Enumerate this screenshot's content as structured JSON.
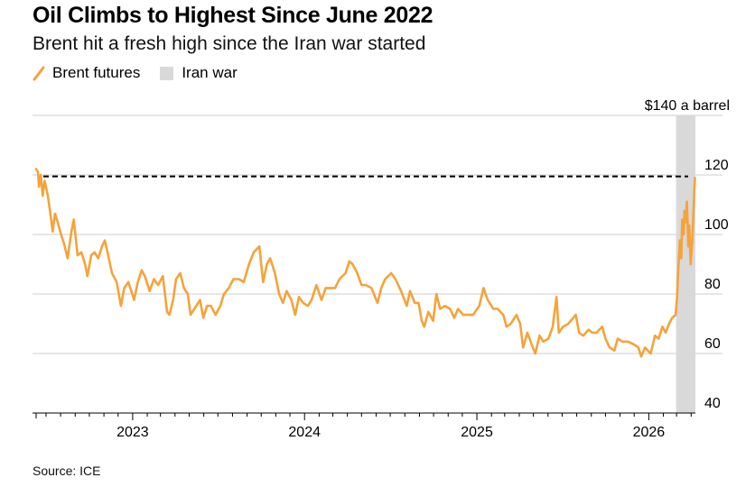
{
  "title": "Oil Climbs to Highest Since June 2022",
  "subtitle": "Brent hit a fresh high since the Iran war started",
  "source": "Source: ICE",
  "colors": {
    "line": "#f5a33a",
    "shade": "#d9d9d9",
    "reference": "#000000",
    "grid": "#cccccc"
  },
  "legend": [
    {
      "label": "Brent futures",
      "kind": "line"
    },
    {
      "label": "Iran war",
      "kind": "shade"
    }
  ],
  "chart_data": {
    "type": "line",
    "title": "Oil Climbs to Highest Since June 2022",
    "subtitle": "Brent hit a fresh high since the Iran war started",
    "ylabel": "",
    "y_unit_label": "$140 a barrel",
    "ylim": [
      40,
      140
    ],
    "yticks": [
      40,
      60,
      80,
      100,
      120,
      140
    ],
    "ytick_labels": [
      "40",
      "60",
      "80",
      "100",
      "120",
      "$140 a barrel"
    ],
    "xlim": [
      "2022-06-10",
      "2026-04-10"
    ],
    "xticks": [
      {
        "date": "2023-01-01",
        "label": "2023"
      },
      {
        "date": "2024-01-01",
        "label": "2024"
      },
      {
        "date": "2025-01-01",
        "label": "2025"
      },
      {
        "date": "2026-01-01",
        "label": "2026"
      }
    ],
    "grid": true,
    "legend_position": "top-left",
    "reference_line": {
      "value": 119.5,
      "style": "dashed"
    },
    "shaded_region": {
      "name": "Iran war",
      "start": "2026-02-28",
      "end": "2026-04-10"
    },
    "series": [
      {
        "name": "Brent futures",
        "points": [
          [
            "2022-06-10",
            122
          ],
          [
            "2022-06-14",
            121
          ],
          [
            "2022-06-16",
            116
          ],
          [
            "2022-06-20",
            120
          ],
          [
            "2022-06-24",
            113
          ],
          [
            "2022-06-28",
            118
          ],
          [
            "2022-07-05",
            113
          ],
          [
            "2022-07-12",
            105
          ],
          [
            "2022-07-15",
            101
          ],
          [
            "2022-07-20",
            107
          ],
          [
            "2022-07-26",
            104
          ],
          [
            "2022-08-02",
            100
          ],
          [
            "2022-08-08",
            97
          ],
          [
            "2022-08-16",
            92
          ],
          [
            "2022-08-24",
            101
          ],
          [
            "2022-08-29",
            105
          ],
          [
            "2022-09-06",
            93
          ],
          [
            "2022-09-14",
            94
          ],
          [
            "2022-09-22",
            90
          ],
          [
            "2022-09-27",
            86
          ],
          [
            "2022-10-05",
            93
          ],
          [
            "2022-10-12",
            94
          ],
          [
            "2022-10-20",
            92
          ],
          [
            "2022-10-28",
            96
          ],
          [
            "2022-11-03",
            98
          ],
          [
            "2022-11-10",
            93
          ],
          [
            "2022-11-18",
            87
          ],
          [
            "2022-11-28",
            84
          ],
          [
            "2022-12-07",
            76
          ],
          [
            "2022-12-14",
            82
          ],
          [
            "2022-12-23",
            84
          ],
          [
            "2023-01-04",
            78
          ],
          [
            "2023-01-12",
            84
          ],
          [
            "2023-01-20",
            88
          ],
          [
            "2023-01-27",
            86
          ],
          [
            "2023-02-06",
            81
          ],
          [
            "2023-02-15",
            85
          ],
          [
            "2023-02-24",
            83
          ],
          [
            "2023-03-06",
            86
          ],
          [
            "2023-03-15",
            74
          ],
          [
            "2023-03-20",
            73
          ],
          [
            "2023-03-28",
            78
          ],
          [
            "2023-04-03",
            85
          ],
          [
            "2023-04-12",
            87
          ],
          [
            "2023-04-20",
            82
          ],
          [
            "2023-04-28",
            80
          ],
          [
            "2023-05-04",
            73
          ],
          [
            "2023-05-12",
            75
          ],
          [
            "2023-05-24",
            78
          ],
          [
            "2023-05-31",
            72
          ],
          [
            "2023-06-08",
            76
          ],
          [
            "2023-06-16",
            76
          ],
          [
            "2023-06-26",
            73
          ],
          [
            "2023-07-06",
            76
          ],
          [
            "2023-07-14",
            80
          ],
          [
            "2023-07-24",
            82
          ],
          [
            "2023-08-03",
            85
          ],
          [
            "2023-08-15",
            85
          ],
          [
            "2023-08-25",
            84
          ],
          [
            "2023-09-05",
            90
          ],
          [
            "2023-09-15",
            94
          ],
          [
            "2023-09-27",
            96
          ],
          [
            "2023-10-05",
            84
          ],
          [
            "2023-10-13",
            90
          ],
          [
            "2023-10-20",
            92
          ],
          [
            "2023-10-30",
            87
          ],
          [
            "2023-11-08",
            80
          ],
          [
            "2023-11-16",
            77
          ],
          [
            "2023-11-24",
            81
          ],
          [
            "2023-12-04",
            78
          ],
          [
            "2023-12-12",
            73
          ],
          [
            "2023-12-20",
            79
          ],
          [
            "2023-12-29",
            77
          ],
          [
            "2024-01-08",
            76
          ],
          [
            "2024-01-16",
            78
          ],
          [
            "2024-01-26",
            83
          ],
          [
            "2024-02-06",
            78
          ],
          [
            "2024-02-15",
            82
          ],
          [
            "2024-02-26",
            82
          ],
          [
            "2024-03-06",
            82
          ],
          [
            "2024-03-15",
            85
          ],
          [
            "2024-03-28",
            87
          ],
          [
            "2024-04-05",
            91
          ],
          [
            "2024-04-12",
            90
          ],
          [
            "2024-04-22",
            87
          ],
          [
            "2024-05-01",
            83
          ],
          [
            "2024-05-10",
            83
          ],
          [
            "2024-05-22",
            82
          ],
          [
            "2024-06-04",
            77
          ],
          [
            "2024-06-12",
            82
          ],
          [
            "2024-06-20",
            85
          ],
          [
            "2024-07-03",
            87
          ],
          [
            "2024-07-12",
            85
          ],
          [
            "2024-07-24",
            81
          ],
          [
            "2024-08-05",
            76
          ],
          [
            "2024-08-12",
            81
          ],
          [
            "2024-08-22",
            77
          ],
          [
            "2024-08-30",
            77
          ],
          [
            "2024-09-06",
            71
          ],
          [
            "2024-09-11",
            69
          ],
          [
            "2024-09-20",
            74
          ],
          [
            "2024-09-30",
            71
          ],
          [
            "2024-10-07",
            80
          ],
          [
            "2024-10-15",
            75
          ],
          [
            "2024-10-25",
            76
          ],
          [
            "2024-11-05",
            75
          ],
          [
            "2024-11-14",
            72
          ],
          [
            "2024-11-22",
            75
          ],
          [
            "2024-12-03",
            73
          ],
          [
            "2024-12-12",
            73
          ],
          [
            "2024-12-24",
            73
          ],
          [
            "2025-01-06",
            76
          ],
          [
            "2025-01-15",
            82
          ],
          [
            "2025-01-24",
            78
          ],
          [
            "2025-02-05",
            75
          ],
          [
            "2025-02-14",
            75
          ],
          [
            "2025-02-26",
            73
          ],
          [
            "2025-03-05",
            69
          ],
          [
            "2025-03-14",
            70
          ],
          [
            "2025-03-26",
            73
          ],
          [
            "2025-04-03",
            70
          ],
          [
            "2025-04-09",
            62
          ],
          [
            "2025-04-18",
            67
          ],
          [
            "2025-04-30",
            62
          ],
          [
            "2025-05-05",
            60
          ],
          [
            "2025-05-14",
            66
          ],
          [
            "2025-05-22",
            64
          ],
          [
            "2025-06-02",
            65
          ],
          [
            "2025-06-11",
            69
          ],
          [
            "2025-06-19",
            79
          ],
          [
            "2025-06-24",
            67
          ],
          [
            "2025-07-03",
            69
          ],
          [
            "2025-07-14",
            70
          ],
          [
            "2025-07-30",
            73
          ],
          [
            "2025-08-06",
            67
          ],
          [
            "2025-08-15",
            66
          ],
          [
            "2025-08-26",
            68
          ],
          [
            "2025-09-04",
            67
          ],
          [
            "2025-09-12",
            67
          ],
          [
            "2025-09-24",
            69
          ],
          [
            "2025-10-01",
            65
          ],
          [
            "2025-10-10",
            62
          ],
          [
            "2025-10-20",
            61
          ],
          [
            "2025-10-27",
            65
          ],
          [
            "2025-11-06",
            64
          ],
          [
            "2025-11-18",
            64
          ],
          [
            "2025-12-01",
            63
          ],
          [
            "2025-12-10",
            62
          ],
          [
            "2025-12-16",
            59
          ],
          [
            "2025-12-24",
            62
          ],
          [
            "2026-01-05",
            60
          ],
          [
            "2026-01-14",
            66
          ],
          [
            "2026-01-22",
            65
          ],
          [
            "2026-01-30",
            69
          ],
          [
            "2026-02-06",
            67
          ],
          [
            "2026-02-13",
            70
          ],
          [
            "2026-02-20",
            72
          ],
          [
            "2026-02-27",
            73
          ],
          [
            "2026-03-02",
            79
          ],
          [
            "2026-03-05",
            89
          ],
          [
            "2026-03-08",
            98
          ],
          [
            "2026-03-11",
            92
          ],
          [
            "2026-03-13",
            105
          ],
          [
            "2026-03-16",
            100
          ],
          [
            "2026-03-18",
            108
          ],
          [
            "2026-03-20",
            104
          ],
          [
            "2026-03-23",
            111
          ],
          [
            "2026-03-26",
            96
          ],
          [
            "2026-03-28",
            103
          ],
          [
            "2026-03-31",
            90
          ],
          [
            "2026-04-03",
            97
          ],
          [
            "2026-04-06",
            108
          ],
          [
            "2026-04-09",
            119
          ]
        ]
      }
    ]
  }
}
